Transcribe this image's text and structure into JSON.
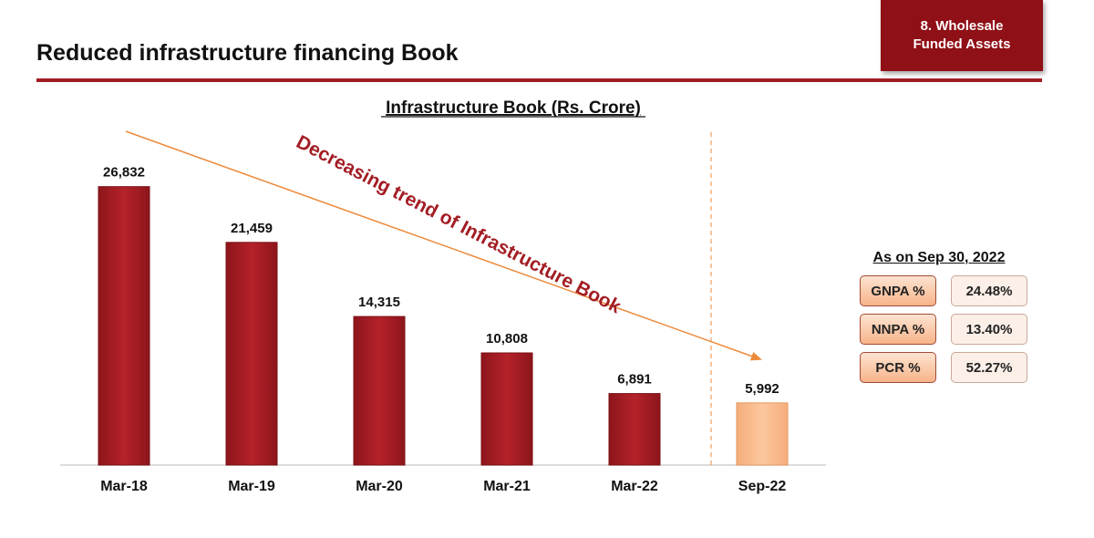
{
  "header": {
    "title": "Reduced infrastructure financing Book",
    "section_line1": "8. Wholesale",
    "section_line2": "Funded Assets"
  },
  "colors": {
    "accent": "#a31d24",
    "bar": "#a51c24",
    "highlight_bar": "#fbbf90",
    "trend": "#ec8a3b"
  },
  "chart_data": {
    "type": "bar",
    "title": "Infrastructure Book (Rs. Crore)",
    "categories": [
      "Mar-18",
      "Mar-19",
      "Mar-20",
      "Mar-21",
      "Mar-22",
      "Sep-22"
    ],
    "values": [
      26832,
      21459,
      14315,
      10808,
      6891,
      5992
    ],
    "value_labels": [
      "26,832",
      "21,459",
      "14,315",
      "10,808",
      "6,891",
      "5,992"
    ],
    "highlight_index": 5,
    "ylim": [
      0,
      29000
    ],
    "xlabel": "",
    "ylabel": "",
    "annotation": "Decreasing trend of Infrastructure Book",
    "grid": false
  },
  "metrics": {
    "heading": "As on Sep 30, 2022",
    "rows": [
      {
        "label": "GNPA %",
        "value": "24.48%"
      },
      {
        "label": "NNPA %",
        "value": "13.40%"
      },
      {
        "label": "PCR %",
        "value": "52.27%"
      }
    ]
  }
}
